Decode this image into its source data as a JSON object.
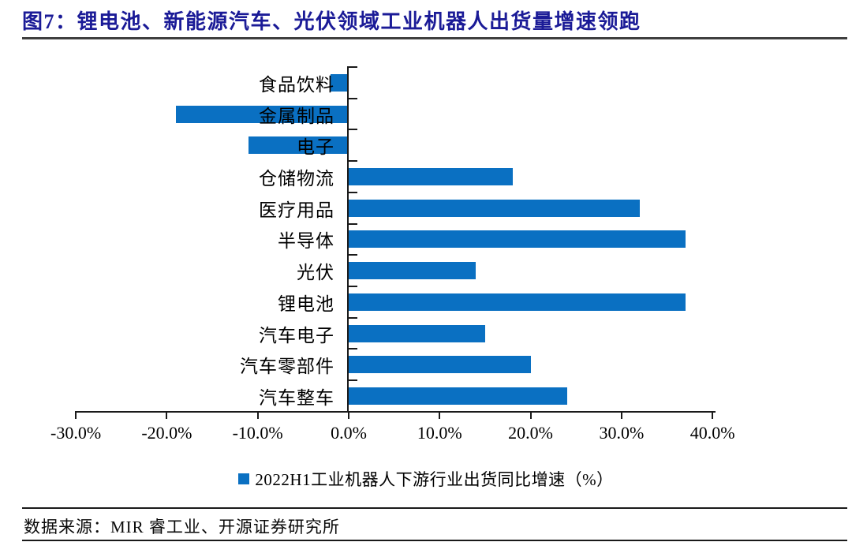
{
  "figure": {
    "title": "图7：锂电池、新能源汽车、光伏领域工业机器人出货量增速领跑"
  },
  "chart_data": {
    "type": "bar",
    "orientation": "horizontal",
    "legend": "2022H1工业机器人下游行业出货同比增速（%）",
    "legend_position": "bottom",
    "categories": [
      "食品饮料",
      "金属制品",
      "电子",
      "仓储物流",
      "医疗用品",
      "半导体",
      "光伏",
      "锂电池",
      "汽车电子",
      "汽车零部件",
      "汽车整车"
    ],
    "values": [
      -2,
      -19,
      -11,
      18,
      32,
      37,
      14,
      37,
      15,
      20,
      24
    ],
    "unit": "%",
    "xlim": [
      -30,
      40
    ],
    "x_tick_labels": [
      "-30.0%",
      "-20.0%",
      "-10.0%",
      "0.0%",
      "10.0%",
      "20.0%",
      "30.0%",
      "40.0%"
    ],
    "grid": "off",
    "bar_color": "#0a70c2"
  },
  "footer": {
    "source": "数据来源：MIR 睿工业、开源证券研究所"
  },
  "colors": {
    "title": "#1b1b97",
    "bar": "#0a70c2",
    "axis": "#1a1a1a",
    "title_rule": "#3f3f3f"
  }
}
